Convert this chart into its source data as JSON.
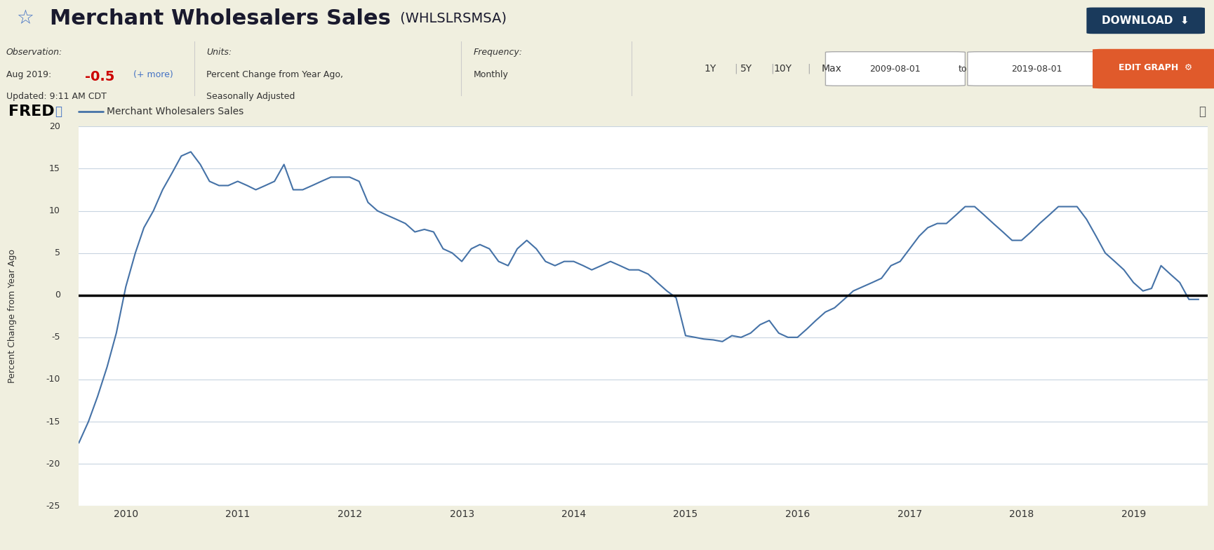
{
  "title": "Merchant Wholesalers Sales",
  "ticker": "(WHLSLRSMSA)",
  "legend_label": "Merchant Wholesalers Sales",
  "ylabel": "Percent Change from Year Ago",
  "observation_label": "Observation:",
  "observation_value": "Aug 2019: -0.5",
  "observation_extra": "(+ more)",
  "units_label": "Units:",
  "units_value": "Percent Change from Year Ago,\nSeasonally Adjusted",
  "freq_label": "Frequency:",
  "freq_value": "Monthly",
  "updated": "Updated: 9:11 AM CDT",
  "date_from": "2009-08-01",
  "date_to": "2019-08-01",
  "ylim": [
    -25,
    20
  ],
  "yticks": [
    -25,
    -20,
    -15,
    -10,
    -5,
    0,
    5,
    10,
    15,
    20
  ],
  "line_color": "#4572a7",
  "zero_line_color": "#000000",
  "bg_header": "#f0efdf",
  "bg_info": "#ffffff",
  "bg_chart_header": "#dce6f0",
  "bg_chart": "#ffffff",
  "bg_yaxis": "#dce6f0",
  "grid_color": "#c8d4e0",
  "dates": [
    "2009-08-01",
    "2009-09-01",
    "2009-10-01",
    "2009-11-01",
    "2009-12-01",
    "2010-01-01",
    "2010-02-01",
    "2010-03-01",
    "2010-04-01",
    "2010-05-01",
    "2010-06-01",
    "2010-07-01",
    "2010-08-01",
    "2010-09-01",
    "2010-10-01",
    "2010-11-01",
    "2010-12-01",
    "2011-01-01",
    "2011-02-01",
    "2011-03-01",
    "2011-04-01",
    "2011-05-01",
    "2011-06-01",
    "2011-07-01",
    "2011-08-01",
    "2011-09-01",
    "2011-10-01",
    "2011-11-01",
    "2011-12-01",
    "2012-01-01",
    "2012-02-01",
    "2012-03-01",
    "2012-04-01",
    "2012-05-01",
    "2012-06-01",
    "2012-07-01",
    "2012-08-01",
    "2012-09-01",
    "2012-10-01",
    "2012-11-01",
    "2012-12-01",
    "2013-01-01",
    "2013-02-01",
    "2013-03-01",
    "2013-04-01",
    "2013-05-01",
    "2013-06-01",
    "2013-07-01",
    "2013-08-01",
    "2013-09-01",
    "2013-10-01",
    "2013-11-01",
    "2013-12-01",
    "2014-01-01",
    "2014-02-01",
    "2014-03-01",
    "2014-04-01",
    "2014-05-01",
    "2014-06-01",
    "2014-07-01",
    "2014-08-01",
    "2014-09-01",
    "2014-10-01",
    "2014-11-01",
    "2014-12-01",
    "2015-01-01",
    "2015-02-01",
    "2015-03-01",
    "2015-04-01",
    "2015-05-01",
    "2015-06-01",
    "2015-07-01",
    "2015-08-01",
    "2015-09-01",
    "2015-10-01",
    "2015-11-01",
    "2015-12-01",
    "2016-01-01",
    "2016-02-01",
    "2016-03-01",
    "2016-04-01",
    "2016-05-01",
    "2016-06-01",
    "2016-07-01",
    "2016-08-01",
    "2016-09-01",
    "2016-10-01",
    "2016-11-01",
    "2016-12-01",
    "2017-01-01",
    "2017-02-01",
    "2017-03-01",
    "2017-04-01",
    "2017-05-01",
    "2017-06-01",
    "2017-07-01",
    "2017-08-01",
    "2017-09-01",
    "2017-10-01",
    "2017-11-01",
    "2017-12-01",
    "2018-01-01",
    "2018-02-01",
    "2018-03-01",
    "2018-04-01",
    "2018-05-01",
    "2018-06-01",
    "2018-07-01",
    "2018-08-01",
    "2018-09-01",
    "2018-10-01",
    "2018-11-01",
    "2018-12-01",
    "2019-01-01",
    "2019-02-01",
    "2019-03-01",
    "2019-04-01",
    "2019-05-01",
    "2019-06-01",
    "2019-07-01",
    "2019-08-01"
  ],
  "values": [
    -17.5,
    -15.0,
    -12.0,
    -8.5,
    -4.5,
    1.0,
    5.0,
    8.0,
    10.0,
    12.5,
    14.5,
    16.5,
    17.0,
    15.5,
    13.5,
    13.0,
    13.0,
    13.5,
    13.0,
    12.5,
    13.0,
    13.5,
    15.5,
    12.5,
    12.5,
    13.0,
    13.5,
    14.0,
    14.0,
    14.0,
    13.5,
    11.0,
    10.0,
    9.5,
    9.0,
    8.5,
    7.5,
    7.8,
    7.5,
    5.5,
    5.0,
    4.0,
    5.5,
    6.0,
    5.5,
    4.0,
    3.5,
    5.5,
    6.5,
    5.5,
    4.0,
    3.5,
    4.0,
    4.0,
    3.5,
    3.0,
    3.5,
    4.0,
    3.5,
    3.0,
    3.0,
    2.5,
    1.5,
    0.5,
    -0.3,
    -4.8,
    -5.0,
    -5.2,
    -5.3,
    -5.5,
    -4.8,
    -5.0,
    -4.5,
    -3.5,
    -3.0,
    -4.5,
    -5.0,
    -5.0,
    -4.0,
    -3.0,
    -2.0,
    -1.5,
    -0.5,
    0.5,
    1.0,
    1.5,
    2.0,
    3.5,
    4.0,
    5.5,
    7.0,
    8.0,
    8.5,
    8.5,
    9.5,
    10.5,
    10.5,
    9.5,
    8.5,
    7.5,
    6.5,
    6.5,
    7.5,
    8.5,
    9.5,
    10.5,
    10.5,
    10.5,
    9.0,
    7.0,
    5.0,
    4.0,
    3.0,
    1.5,
    0.5,
    0.8,
    3.5,
    2.5,
    1.5,
    -0.5,
    -0.5
  ]
}
